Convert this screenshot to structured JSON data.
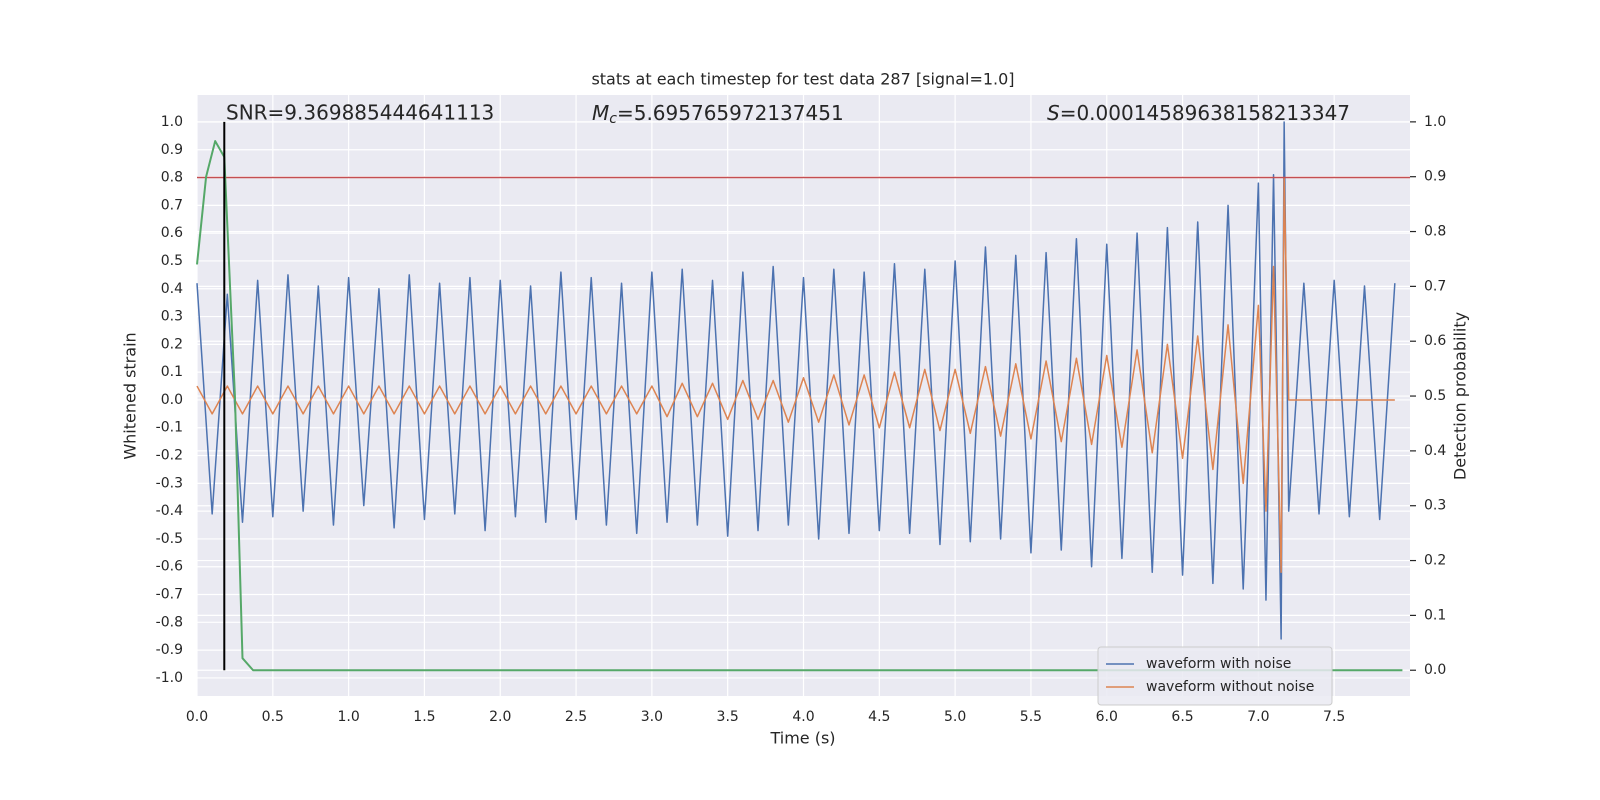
{
  "chart_data": {
    "type": "line",
    "title": "stats at each timestep for test data 287 [signal=1.0]",
    "xlabel": "Time (s)",
    "ylabel": "Whitened strain",
    "y2label": "Detection probability",
    "annotations": [
      {
        "text": "SNR=9.369885444641113"
      },
      {
        "symbol": "M",
        "subscript": "c",
        "text": "=5.695765972137451"
      },
      {
        "symbol": "S",
        "text": "=0.00014589638158213347"
      }
    ],
    "x": [
      0,
      0.1,
      0.2,
      0.3,
      0.4,
      0.5,
      0.6,
      0.7,
      0.8,
      0.9,
      1,
      1.1,
      1.2,
      1.3,
      1.4,
      1.5,
      1.6,
      1.7,
      1.8,
      1.9,
      2,
      2.1,
      2.2,
      2.3,
      2.4,
      2.5,
      2.6,
      2.7,
      2.8,
      2.9,
      3,
      3.1,
      3.2,
      3.3,
      3.4,
      3.5,
      3.6,
      3.7,
      3.8,
      3.9,
      4,
      4.1,
      4.2,
      4.3,
      4.4,
      4.5,
      4.6,
      4.7,
      4.8,
      4.9,
      5,
      5.1,
      5.2,
      5.3,
      5.4,
      5.5,
      5.6,
      5.7,
      5.8,
      5.9,
      6,
      6.1,
      6.2,
      6.3,
      6.4,
      6.5,
      6.6,
      6.7,
      6.8,
      6.9,
      7,
      7.05,
      7.1,
      7.15,
      7.17,
      7.2,
      7.3,
      7.4,
      7.5,
      7.6,
      7.7,
      7.8,
      7.9
    ],
    "series": [
      {
        "name": "waveform with noise",
        "color": "#4c72b0",
        "values": [
          0.42,
          -0.41,
          0.38,
          -0.44,
          0.43,
          -0.42,
          0.45,
          -0.4,
          0.41,
          -0.45,
          0.44,
          -0.38,
          0.4,
          -0.46,
          0.45,
          -0.43,
          0.42,
          -0.41,
          0.44,
          -0.47,
          0.43,
          -0.42,
          0.41,
          -0.44,
          0.46,
          -0.43,
          0.44,
          -0.45,
          0.42,
          -0.48,
          0.46,
          -0.44,
          0.47,
          -0.45,
          0.43,
          -0.49,
          0.46,
          -0.47,
          0.48,
          -0.45,
          0.44,
          -0.5,
          0.47,
          -0.48,
          0.46,
          -0.47,
          0.49,
          -0.48,
          0.47,
          -0.52,
          0.5,
          -0.51,
          0.55,
          -0.5,
          0.52,
          -0.55,
          0.53,
          -0.54,
          0.58,
          -0.6,
          0.56,
          -0.57,
          0.6,
          -0.62,
          0.62,
          -0.63,
          0.64,
          -0.66,
          0.7,
          -0.68,
          0.78,
          -0.72,
          0.81,
          -0.86,
          1.0,
          -0.4,
          0.42,
          -0.41,
          0.43,
          -0.42,
          0.41,
          -0.43,
          0.42
        ]
      },
      {
        "name": "waveform without noise",
        "color": "#dd8452",
        "values": [
          0.05,
          -0.05,
          0.05,
          -0.05,
          0.05,
          -0.05,
          0.05,
          -0.05,
          0.05,
          -0.05,
          0.05,
          -0.05,
          0.05,
          -0.05,
          0.05,
          -0.05,
          0.05,
          -0.05,
          0.05,
          -0.05,
          0.05,
          -0.05,
          0.05,
          -0.05,
          0.05,
          -0.05,
          0.05,
          -0.05,
          0.05,
          -0.05,
          0.05,
          -0.06,
          0.06,
          -0.06,
          0.06,
          -0.07,
          0.07,
          -0.07,
          0.07,
          -0.08,
          0.08,
          -0.08,
          0.09,
          -0.09,
          0.09,
          -0.1,
          0.1,
          -0.1,
          0.11,
          -0.11,
          0.11,
          -0.12,
          0.12,
          -0.13,
          0.13,
          -0.14,
          0.14,
          -0.15,
          0.15,
          -0.16,
          0.16,
          -0.17,
          0.18,
          -0.19,
          0.2,
          -0.21,
          0.23,
          -0.25,
          0.27,
          -0.3,
          0.34,
          -0.4,
          0.48,
          -0.62,
          0.8,
          0,
          0,
          0,
          0,
          0,
          0,
          0,
          0
        ]
      }
    ],
    "detection": {
      "color": "#55a868",
      "axis": "y2",
      "x": [
        0,
        0.06,
        0.12,
        0.18,
        0.25,
        0.3,
        0.37,
        7.95
      ],
      "values": [
        0.74,
        0.9,
        0.965,
        0.936,
        0.5,
        0.022,
        0,
        0
      ]
    },
    "threshold": {
      "value": 0.8,
      "color": "#c44e52"
    },
    "marker": {
      "x": 0.18,
      "ymin": 0,
      "ymax": 1,
      "color": "#000000",
      "axis": "y2"
    },
    "xlim": [
      0,
      8.0
    ],
    "ylim": [
      -1.065,
      1.097
    ],
    "y2lim": [
      -0.047,
      1.049
    ],
    "xticks": [
      {
        "value": 0,
        "label": "0.0"
      },
      0.5,
      {
        "value": 1,
        "label": "1.0"
      },
      1.5,
      {
        "value": 2,
        "label": "2.0"
      },
      2.5,
      {
        "value": 3,
        "label": "3.0"
      },
      3.5,
      {
        "value": 4,
        "label": "4.0"
      },
      4.5,
      {
        "value": 5,
        "label": "5.0"
      },
      5.5,
      {
        "value": 6,
        "label": "6.0"
      },
      6.5,
      {
        "value": 7,
        "label": "7.0"
      },
      7.5
    ],
    "yticks": [
      {
        "value": -1,
        "label": "-1.0"
      },
      -0.9,
      -0.8,
      -0.7,
      -0.6,
      -0.5,
      -0.4,
      -0.3,
      -0.2,
      -0.1,
      {
        "value": 0,
        "label": "0.0"
      },
      0.1,
      0.2,
      0.3,
      0.4,
      0.5,
      0.6,
      0.7,
      0.8,
      0.9,
      {
        "value": 1,
        "label": "1.0"
      }
    ],
    "y2ticks": [
      {
        "value": 0,
        "label": "0.0"
      },
      0.1,
      0.2,
      0.3,
      0.4,
      0.5,
      0.6,
      0.7,
      0.8,
      0.9,
      {
        "value": 1,
        "label": "1.0"
      }
    ],
    "grid": true,
    "legend": "lower right"
  }
}
